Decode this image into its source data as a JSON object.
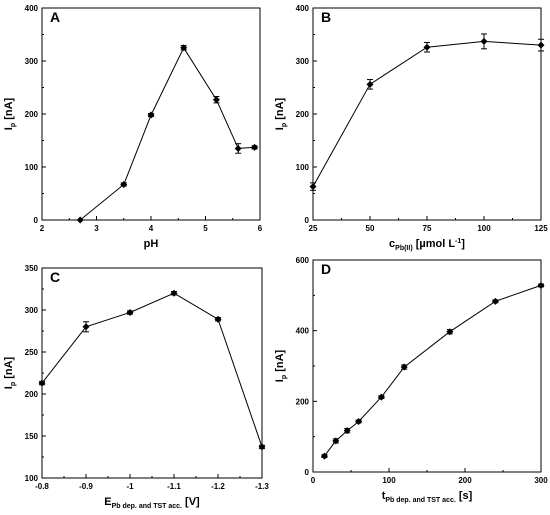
{
  "chart_data": [
    {
      "panel": "A",
      "type": "line",
      "xlabel": "pH",
      "ylabel": "I",
      "ylabel_sub": "p",
      "ylabel_unit": " [nA]",
      "xlim": [
        2,
        6
      ],
      "ylim": [
        0,
        400
      ],
      "xticks": [
        2,
        3,
        4,
        5,
        6
      ],
      "yticks": [
        0,
        100,
        200,
        300,
        400
      ],
      "xticklabels": [
        "2",
        "3",
        "4",
        "5",
        "6"
      ],
      "yticklabels": [
        "0",
        "100",
        "200",
        "300",
        "400"
      ],
      "x": [
        2.7,
        3.5,
        4.0,
        4.6,
        5.2,
        5.6,
        5.9
      ],
      "y": [
        0,
        67,
        198,
        325,
        227,
        135,
        137
      ],
      "err": [
        0,
        3,
        3,
        4,
        6,
        9,
        3
      ]
    },
    {
      "panel": "B",
      "type": "line",
      "xlabel": "c",
      "xlabel_sub": "Pb(II)",
      "xlabel_unit": " [µmol L",
      "xlabel_sup": "-1",
      "xlabel_end": "]",
      "ylabel": "I",
      "ylabel_sub": "p",
      "ylabel_unit": " [nA]",
      "xlim": [
        25,
        125
      ],
      "ylim": [
        0,
        400
      ],
      "xticks": [
        25,
        50,
        75,
        100,
        125
      ],
      "yticks": [
        0,
        100,
        200,
        300,
        400
      ],
      "xticklabels": [
        "25",
        "50",
        "75",
        "100",
        "125"
      ],
      "yticklabels": [
        "0",
        "100",
        "200",
        "300",
        "400"
      ],
      "x": [
        25,
        50,
        75,
        100,
        125
      ],
      "y": [
        63,
        256,
        326,
        337,
        330
      ],
      "err": [
        7,
        9,
        9,
        14,
        11
      ]
    },
    {
      "panel": "C",
      "type": "line",
      "xlabel": "E",
      "xlabel_sub": "Pb dep. and TST acc.",
      "xlabel_unit": " [V]",
      "ylabel": "I",
      "ylabel_sub": "p",
      "ylabel_unit": " [nA]",
      "x_reversed": true,
      "xlim": [
        -0.8,
        -1.3
      ],
      "ylim": [
        100,
        350
      ],
      "xticks": [
        -0.8,
        -0.9,
        -1.0,
        -1.1,
        -1.2,
        -1.3
      ],
      "yticks": [
        100,
        150,
        200,
        250,
        300,
        350
      ],
      "xticklabels": [
        "-0.8",
        "-0.9",
        "-1",
        "-1.1",
        "-1.2",
        "-1.3"
      ],
      "yticklabels": [
        "100",
        "150",
        "200",
        "250",
        "300",
        "350"
      ],
      "x": [
        -0.8,
        -0.9,
        -1.0,
        -1.1,
        -1.2,
        -1.3
      ],
      "y": [
        213,
        280,
        297,
        320,
        289,
        137
      ],
      "err": [
        2,
        6,
        2,
        2,
        2,
        2
      ]
    },
    {
      "panel": "D",
      "type": "line",
      "xlabel": "t",
      "xlabel_sub": "Pb dep. and TST acc.",
      "xlabel_unit": " [s]",
      "ylabel": "I",
      "ylabel_sub": "p",
      "ylabel_unit": " [nA]",
      "xlim": [
        0,
        300
      ],
      "ylim": [
        0,
        600
      ],
      "xticks": [
        0,
        100,
        200,
        300
      ],
      "yticks": [
        0,
        200,
        400,
        600
      ],
      "xticklabels": [
        "0",
        "100",
        "200",
        "300"
      ],
      "yticklabels": [
        "0",
        "200",
        "400",
        "600"
      ],
      "x": [
        15,
        30,
        45,
        60,
        90,
        120,
        180,
        240,
        300
      ],
      "y": [
        45,
        88,
        117,
        143,
        212,
        297,
        397,
        483,
        528
      ],
      "err": [
        4,
        6,
        6,
        4,
        4,
        6,
        6,
        4,
        4
      ]
    }
  ]
}
